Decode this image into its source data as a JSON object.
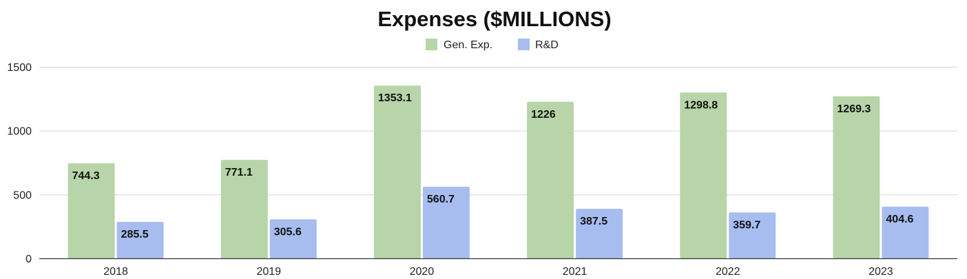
{
  "chart_data": {
    "type": "bar",
    "title": "Expenses ($MILLIONS)",
    "xlabel": "",
    "ylabel": "",
    "categories": [
      "2018",
      "2019",
      "2020",
      "2021",
      "2022",
      "2023"
    ],
    "series": [
      {
        "name": "Gen. Exp.",
        "color": "#b7d5a8",
        "values": [
          744.3,
          771.1,
          1353.1,
          1226,
          1298.8,
          1269.3
        ],
        "labels": [
          "744.3",
          "771.1",
          "1353.1",
          "1226",
          "1298.8",
          "1269.3"
        ]
      },
      {
        "name": "R&D",
        "color": "#a7bdf0",
        "values": [
          285.5,
          305.6,
          560.7,
          387.5,
          359.7,
          404.6
        ],
        "labels": [
          "285.5",
          "305.6",
          "560.7",
          "387.5",
          "359.7",
          "404.6"
        ]
      }
    ],
    "ylim": [
      0,
      1500
    ],
    "yticks": [
      0,
      500,
      1000,
      1500
    ],
    "grid": true,
    "legend_position": "top-center"
  }
}
